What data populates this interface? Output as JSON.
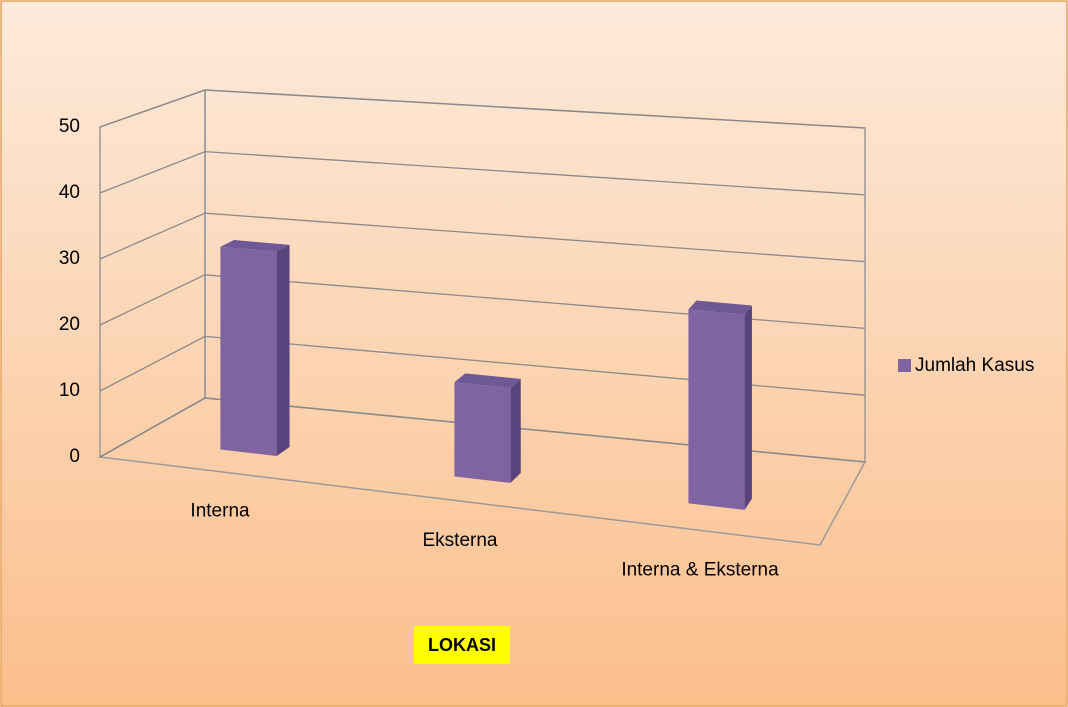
{
  "chart_data": {
    "type": "bar3d",
    "categories": [
      "Interna",
      "Eksterna",
      "Interna & Eksterna"
    ],
    "series": [
      {
        "name": "Jumlah Kasus",
        "color": "#8064a2",
        "values": [
          31,
          14,
          28
        ]
      }
    ],
    "ylim": [
      0,
      50
    ],
    "yticks": [
      0,
      10,
      20,
      30,
      40,
      50
    ],
    "grid": true,
    "x_axis_label": "LOKASI",
    "legend": "right"
  }
}
